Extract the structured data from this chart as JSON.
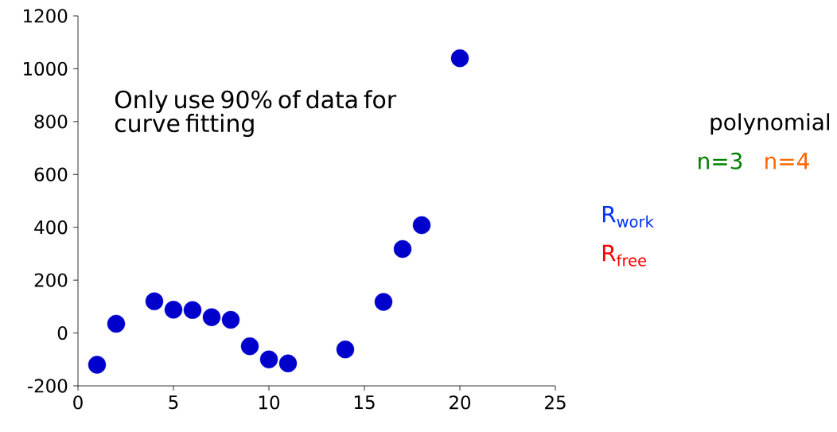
{
  "chart_data": {
    "type": "scatter",
    "x": [
      1,
      2,
      4,
      5,
      6,
      7,
      8,
      9,
      10,
      11,
      14,
      16,
      17,
      18,
      20
    ],
    "values": [
      -120,
      35,
      120,
      88,
      87,
      60,
      50,
      -50,
      -100,
      -115,
      -62,
      118,
      318,
      408,
      1040
    ],
    "color": "#0000cc",
    "xlim": [
      0,
      25
    ],
    "xticks": [
      0,
      5,
      10,
      15,
      20,
      25
    ],
    "ylim": [
      -200,
      1200
    ],
    "yticks": [
      -200,
      0,
      200,
      400,
      600,
      800,
      1000,
      1200
    ],
    "marker": "circle",
    "grid": false,
    "legend": false,
    "annotations": [
      "Only use 90% of data for curve fitting",
      "polynomial",
      "n=3",
      "n=4",
      "R$_{work}$",
      "R$_{free}$"
    ]
  }
}
